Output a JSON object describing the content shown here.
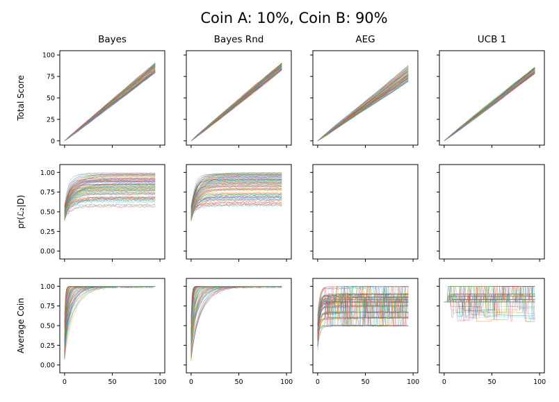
{
  "title": "Coin A: 10%, Coin B: 90%",
  "columns": [
    "Bayes",
    "Bayes Rnd",
    "AEG",
    "UCB 1"
  ],
  "row_ylabels": [
    "Total Score",
    "pr(ℒ₂|D)",
    "Average Coin"
  ],
  "series_colors": [
    "#1f77b4",
    "#ff7f0e",
    "#2ca02c",
    "#d62728",
    "#9467bd",
    "#8c564b",
    "#e377c2",
    "#7f7f7f",
    "#bcbd22",
    "#17becf"
  ],
  "chart_data": [
    {
      "type": "line",
      "row": "Total Score",
      "column": "Bayes",
      "xlim": [
        -5,
        105
      ],
      "ylim": [
        -5,
        105
      ],
      "xticks": [
        "0",
        "50",
        "100"
      ],
      "yticks": [
        "0",
        "25",
        "50",
        "75",
        "100"
      ],
      "x": [
        0,
        95
      ],
      "n_series": 100,
      "y_end_range": [
        79,
        91
      ]
    },
    {
      "type": "line",
      "row": "Total Score",
      "column": "Bayes Rnd",
      "xlim": [
        -5,
        105
      ],
      "ylim": [
        -5,
        105
      ],
      "xticks": [
        "0",
        "50",
        "100"
      ],
      "yticks": [
        "0",
        "25",
        "50",
        "75",
        "100"
      ],
      "x": [
        0,
        95
      ],
      "n_series": 100,
      "y_end_range": [
        82,
        91
      ]
    },
    {
      "type": "line",
      "row": "Total Score",
      "column": "AEG",
      "xlim": [
        -5,
        105
      ],
      "ylim": [
        -5,
        105
      ],
      "xticks": [
        "0",
        "50",
        "100"
      ],
      "yticks": [
        "0",
        "25",
        "50",
        "75",
        "100"
      ],
      "x": [
        0,
        95
      ],
      "n_series": 100,
      "y_end_range": [
        69,
        88
      ]
    },
    {
      "type": "line",
      "row": "Total Score",
      "column": "UCB 1",
      "xlim": [
        -5,
        105
      ],
      "ylim": [
        -5,
        105
      ],
      "xticks": [
        "0",
        "50",
        "100"
      ],
      "yticks": [
        "0",
        "25",
        "50",
        "75",
        "100"
      ],
      "x": [
        0,
        95
      ],
      "n_series": 100,
      "y_end_range": [
        78,
        86
      ]
    },
    {
      "type": "line",
      "row": "pr(ℒ₂|D)",
      "column": "Bayes",
      "xlim": [
        -5,
        105
      ],
      "ylim": [
        -0.1,
        1.1
      ],
      "xticks": [
        "0",
        "50",
        "100"
      ],
      "yticks": [
        "0.00",
        "0.25",
        "0.50",
        "0.75",
        "1.00"
      ],
      "x": [
        0,
        95
      ],
      "n_series": 100,
      "y_start": 0.5,
      "y_plateau_range": [
        0.55,
        1.0
      ]
    },
    {
      "type": "line",
      "row": "pr(ℒ₂|D)",
      "column": "Bayes Rnd",
      "xlim": [
        -5,
        105
      ],
      "ylim": [
        -0.1,
        1.1
      ],
      "xticks": [
        "0",
        "50",
        "100"
      ],
      "yticks": [
        "0.00",
        "0.25",
        "0.50",
        "0.75",
        "1.00"
      ],
      "x": [
        0,
        95
      ],
      "n_series": 100,
      "y_start": 0.5,
      "y_plateau_range": [
        0.55,
        1.0
      ]
    },
    {
      "type": "line",
      "row": "pr(ℒ₂|D)",
      "column": "AEG",
      "xlim": [
        -5,
        105
      ],
      "ylim": [
        -0.1,
        1.1
      ],
      "xticks": [
        "0",
        "50",
        "100"
      ],
      "yticks": [
        "0.00",
        "0.25",
        "0.50",
        "0.75",
        "1.00"
      ],
      "n_series": 0
    },
    {
      "type": "line",
      "row": "pr(ℒ₂|D)",
      "column": "UCB 1",
      "xlim": [
        -5,
        105
      ],
      "ylim": [
        -0.1,
        1.1
      ],
      "xticks": [
        "0",
        "50",
        "100"
      ],
      "yticks": [
        "0.00",
        "0.25",
        "0.50",
        "0.75",
        "1.00"
      ],
      "n_series": 0
    },
    {
      "type": "line",
      "row": "Average Coin",
      "column": "Bayes",
      "xlim": [
        -5,
        105
      ],
      "ylim": [
        -0.1,
        1.1
      ],
      "xticks": [
        "0",
        "50",
        "100"
      ],
      "yticks": [
        "0.00",
        "0.25",
        "0.50",
        "0.75",
        "1.00"
      ],
      "x": [
        0,
        95
      ],
      "n_series": 100,
      "y_converged": 1.0
    },
    {
      "type": "line",
      "row": "Average Coin",
      "column": "Bayes Rnd",
      "xlim": [
        -5,
        105
      ],
      "ylim": [
        -0.1,
        1.1
      ],
      "xticks": [
        "0",
        "50",
        "100"
      ],
      "yticks": [
        "0.00",
        "0.25",
        "0.50",
        "0.75",
        "1.00"
      ],
      "x": [
        0,
        95
      ],
      "n_series": 100,
      "y_converged": 1.0
    },
    {
      "type": "line",
      "row": "Average Coin",
      "column": "AEG",
      "xlim": [
        -5,
        105
      ],
      "ylim": [
        -0.1,
        1.1
      ],
      "xticks": [
        "0",
        "50",
        "100"
      ],
      "yticks": [
        "0.00",
        "0.25",
        "0.50",
        "0.75",
        "1.00"
      ],
      "x": [
        0,
        95
      ],
      "n_series": 100,
      "y_band": [
        0.45,
        1.0
      ]
    },
    {
      "type": "line",
      "row": "Average Coin",
      "column": "UCB 1",
      "xlim": [
        -5,
        105
      ],
      "ylim": [
        -0.1,
        1.1
      ],
      "xticks": [
        "0",
        "50",
        "100"
      ],
      "yticks": [
        "0.00",
        "0.25",
        "0.50",
        "0.75",
        "1.00"
      ],
      "x": [
        0,
        95
      ],
      "n_series": 100,
      "y_band": [
        0.75,
        1.0
      ]
    }
  ]
}
